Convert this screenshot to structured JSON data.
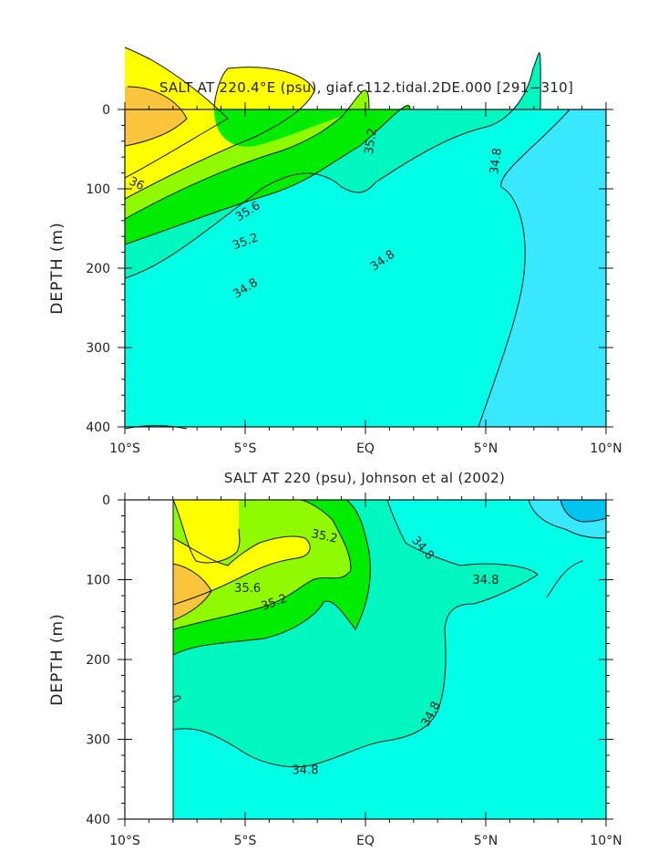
{
  "colors": {
    "s35_6": "#fac53c",
    "s35_2": "#ffff00",
    "s34_8": "#90fb00",
    "s34_4": "#00ec00",
    "s34_0": "#00f8c0",
    "s33_6": "#00ffe6",
    "fresh1": "#38e8ff",
    "fresh2": "#00c4f0"
  },
  "chart_data": [
    {
      "type": "contour",
      "title": "SALT AT 220.4°E (psu), giaf.c112.tidal.2DE.000 [291−310]",
      "xlabel": "",
      "ylabel": "DEPTH (m)",
      "xlim": [
        -10,
        10
      ],
      "ylim": [
        400,
        0
      ],
      "x_ticks": [
        {
          "v": -10,
          "label": "10°S"
        },
        {
          "v": -5,
          "label": "5°S"
        },
        {
          "v": 0,
          "label": "EQ"
        },
        {
          "v": 5,
          "label": "5°N"
        },
        {
          "v": 10,
          "label": "10°N"
        }
      ],
      "y_ticks": [
        {
          "v": 0,
          "label": "0"
        },
        {
          "v": 100,
          "label": "100"
        },
        {
          "v": 200,
          "label": "200"
        },
        {
          "v": 300,
          "label": "300"
        },
        {
          "v": 400,
          "label": "400"
        }
      ],
      "contour_labels": [
        {
          "text": "36",
          "x": -9.5,
          "depth": 93,
          "angle": 25
        },
        {
          "text": "35.6",
          "x": -4.9,
          "depth": 128,
          "angle": -32
        },
        {
          "text": "35.2",
          "x": -5.0,
          "depth": 166,
          "angle": -20
        },
        {
          "text": "35.2",
          "x": 0.2,
          "depth": 40,
          "angle": -82
        },
        {
          "text": "34.8",
          "x": 5.4,
          "depth": 65,
          "angle": -82
        },
        {
          "text": "34.8",
          "x": 0.7,
          "depth": 190,
          "angle": -35
        },
        {
          "text": "34.8",
          "x": -5.0,
          "depth": 225,
          "angle": -32
        }
      ]
    },
    {
      "type": "contour",
      "title": "SALT AT 220 (psu), Johnson et al (2002)",
      "xlabel": "",
      "ylabel": "DEPTH (m)",
      "xlim": [
        -10,
        10
      ],
      "ylim": [
        400,
        0
      ],
      "x_ticks": [
        {
          "v": -10,
          "label": "10°S"
        },
        {
          "v": -5,
          "label": "5°S"
        },
        {
          "v": 0,
          "label": "EQ"
        },
        {
          "v": 5,
          "label": "5°N"
        },
        {
          "v": 10,
          "label": "10°N"
        }
      ],
      "y_ticks": [
        {
          "v": 0,
          "label": "0"
        },
        {
          "v": 100,
          "label": "100"
        },
        {
          "v": 200,
          "label": "200"
        },
        {
          "v": 300,
          "label": "300"
        },
        {
          "v": 400,
          "label": "400"
        }
      ],
      "contour_labels": [
        {
          "text": "35.2",
          "x": -1.7,
          "depth": 45,
          "angle": 12
        },
        {
          "text": "35.6",
          "x": -4.9,
          "depth": 110,
          "angle": 0
        },
        {
          "text": "35.2",
          "x": -3.8,
          "depth": 128,
          "angle": -20
        },
        {
          "text": "34.8",
          "x": 2.4,
          "depth": 60,
          "angle": 48
        },
        {
          "text": "34.8",
          "x": 5.0,
          "depth": 100,
          "angle": 0
        },
        {
          "text": "34.8",
          "x": 2.7,
          "depth": 268,
          "angle": -62
        },
        {
          "text": "34.8",
          "x": -2.5,
          "depth": 338,
          "angle": 0
        }
      ]
    }
  ]
}
